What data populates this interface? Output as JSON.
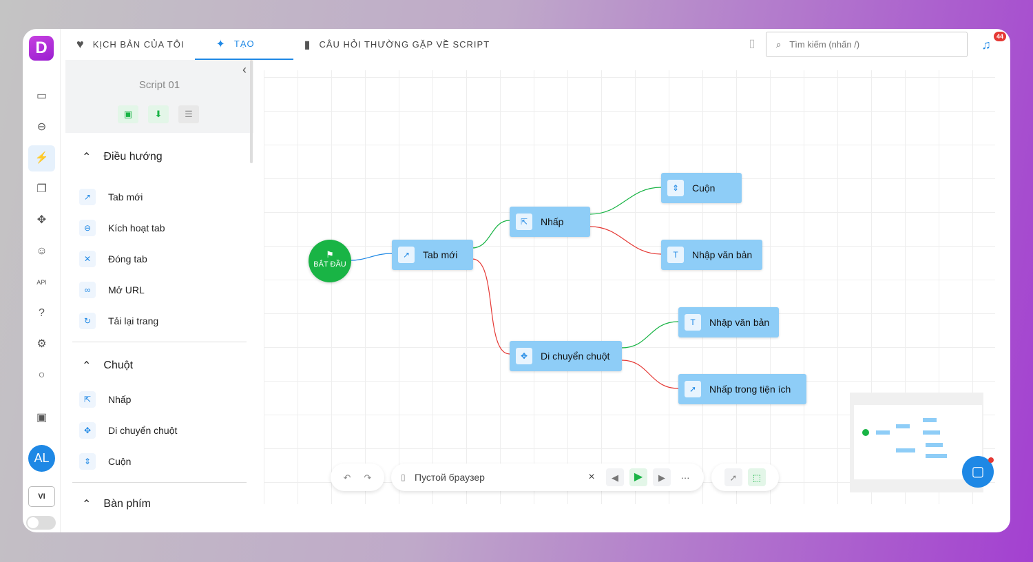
{
  "app": {
    "logo": "D",
    "accent": "#1e88e5",
    "brand": "#b030e0"
  },
  "rail": {
    "icons": [
      "window-icon",
      "link-icon",
      "flow-icon",
      "copy-icon",
      "puzzle-icon",
      "users-icon",
      "api-icon",
      "help-icon",
      "settings-icon",
      "lightbulb-icon",
      "wallet-icon"
    ],
    "avatar": "AL",
    "lang": "VI"
  },
  "tabs": [
    {
      "label": "KỊCH BẢN CỦA TÔI",
      "icon": "heart-icon"
    },
    {
      "label": "TẠO",
      "icon": "sparkle-icon"
    },
    {
      "label": "CÂU HỎI THƯỜNG GẶP VỀ SCRIPT",
      "icon": "book-icon"
    }
  ],
  "search": {
    "placeholder": "Tìm kiếm (nhấn /)"
  },
  "notifications": {
    "count": "44"
  },
  "panel": {
    "title": "Script 01",
    "sections": [
      {
        "title": "Điều hướng",
        "items": [
          "Tab mới",
          "Kích hoạt tab",
          "Đóng tab",
          "Mở URL",
          "Tải lại trang"
        ]
      },
      {
        "title": "Chuột",
        "items": [
          "Nhấp",
          "Di chuyển chuột",
          "Cuộn"
        ]
      },
      {
        "title": "Bàn phím",
        "items": []
      }
    ]
  },
  "flow": {
    "start": "BẮT ĐẦU",
    "nodes": [
      "Tab mới",
      "Nhấp",
      "Cuộn",
      "Nhập văn bản",
      "Nhập văn bản",
      "Di chuyển chuột",
      "Nhấp trong tiện ích"
    ],
    "edge_colors": {
      "default": "#1e88e5",
      "success": "#19b445",
      "error": "#e53935"
    }
  },
  "toolbar": {
    "browser": "Пустой браузер",
    "close": "×",
    "more": "···"
  }
}
